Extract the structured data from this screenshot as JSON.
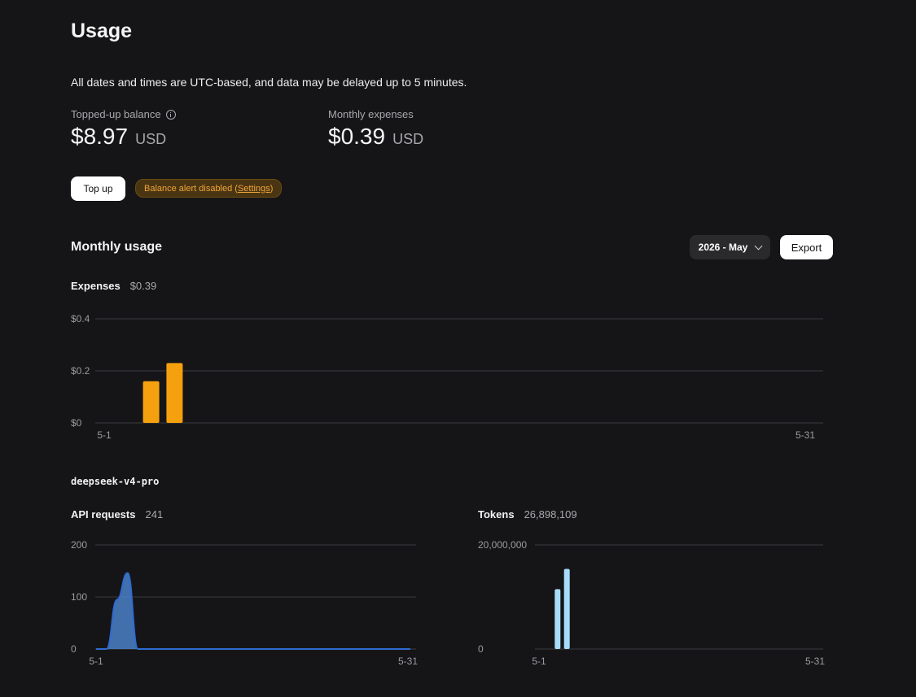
{
  "page": {
    "title": "Usage",
    "notice": "All dates and times are UTC-based, and data may be delayed up to 5 minutes."
  },
  "balance": {
    "label": "Topped-up balance",
    "value": "$8.97",
    "unit": "USD"
  },
  "expenses": {
    "label": "Monthly expenses",
    "value": "$0.39",
    "unit": "USD"
  },
  "actions": {
    "top_up_label": "Top up",
    "alert_text": "Balance alert disabled (",
    "alert_link": "Settings",
    "alert_close": ")"
  },
  "monthly": {
    "title": "Monthly usage",
    "selected_month": "2026 - May",
    "export_label": "Export"
  },
  "model": {
    "name": "deepseek-v4-pro"
  },
  "chart_data": [
    {
      "type": "bar",
      "title": "Expenses",
      "total": "$0.39",
      "x": [
        "5-1",
        "5-2",
        "5-3",
        "5-4",
        "5-5",
        "5-6",
        "5-7",
        "5-8",
        "5-9",
        "5-10",
        "5-11",
        "5-12",
        "5-13",
        "5-14",
        "5-15",
        "5-16",
        "5-17",
        "5-18",
        "5-19",
        "5-20",
        "5-21",
        "5-22",
        "5-23",
        "5-24",
        "5-25",
        "5-26",
        "5-27",
        "5-28",
        "5-29",
        "5-30",
        "5-31"
      ],
      "values": [
        0,
        0,
        0.16,
        0.23,
        0,
        0,
        0,
        0,
        0,
        0,
        0,
        0,
        0,
        0,
        0,
        0,
        0,
        0,
        0,
        0,
        0,
        0,
        0,
        0,
        0,
        0,
        0,
        0,
        0,
        0,
        0
      ],
      "ylim": [
        0,
        0.4
      ],
      "y_ticks": [
        0,
        0.2,
        0.4
      ],
      "y_tick_labels": [
        "$0",
        "$0.2",
        "$0.4"
      ],
      "x_tick_labels": [
        "5-1",
        "5-31"
      ],
      "color": "#f5a00e",
      "grid": true
    },
    {
      "type": "area",
      "title": "API requests",
      "total": "241",
      "x": [
        "5-1",
        "5-2",
        "5-3",
        "5-4",
        "5-5",
        "5-6",
        "5-7",
        "5-8",
        "5-9",
        "5-10",
        "5-11",
        "5-12",
        "5-13",
        "5-14",
        "5-15",
        "5-16",
        "5-17",
        "5-18",
        "5-19",
        "5-20",
        "5-21",
        "5-22",
        "5-23",
        "5-24",
        "5-25",
        "5-26",
        "5-27",
        "5-28",
        "5-29",
        "5-30",
        "5-31"
      ],
      "values": [
        0,
        0,
        95,
        146,
        0,
        0,
        0,
        0,
        0,
        0,
        0,
        0,
        0,
        0,
        0,
        0,
        0,
        0,
        0,
        0,
        0,
        0,
        0,
        0,
        0,
        0,
        0,
        0,
        0,
        0,
        0
      ],
      "ylim": [
        0,
        200
      ],
      "y_ticks": [
        0,
        100,
        200
      ],
      "y_tick_labels": [
        "0",
        "100",
        "200"
      ],
      "x_tick_labels": [
        "5-1",
        "5-31"
      ],
      "color": "#4a80c8",
      "grid": true
    },
    {
      "type": "bar",
      "title": "Tokens",
      "total": "26,898,109",
      "x": [
        "5-1",
        "5-2",
        "5-3",
        "5-4",
        "5-5",
        "5-6",
        "5-7",
        "5-8",
        "5-9",
        "5-10",
        "5-11",
        "5-12",
        "5-13",
        "5-14",
        "5-15",
        "5-16",
        "5-17",
        "5-18",
        "5-19",
        "5-20",
        "5-21",
        "5-22",
        "5-23",
        "5-24",
        "5-25",
        "5-26",
        "5-27",
        "5-28",
        "5-29",
        "5-30",
        "5-31"
      ],
      "values": [
        0,
        0,
        11500000,
        15400000,
        0,
        0,
        0,
        0,
        0,
        0,
        0,
        0,
        0,
        0,
        0,
        0,
        0,
        0,
        0,
        0,
        0,
        0,
        0,
        0,
        0,
        0,
        0,
        0,
        0,
        0,
        0
      ],
      "ylim": [
        0,
        20000000
      ],
      "y_ticks": [
        0,
        20000000
      ],
      "y_tick_labels": [
        "0",
        "20,000,000"
      ],
      "x_tick_labels": [
        "5-1",
        "5-31"
      ],
      "color": "#a8dcfb",
      "grid": true
    }
  ]
}
